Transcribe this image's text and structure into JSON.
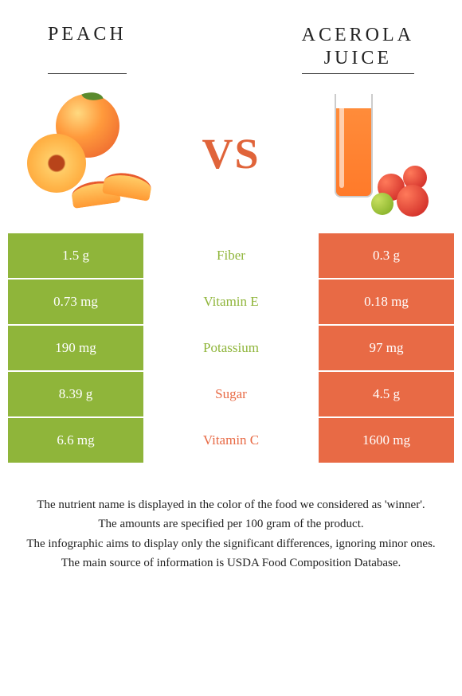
{
  "header": {
    "left_title": "PEACH",
    "right_title_line1": "ACEROLA",
    "right_title_line2": "JUICE"
  },
  "vs_label": "VS",
  "colors": {
    "left_bar": "#8fb53a",
    "right_bar": "#e86a45",
    "left_text": "#8fb53a",
    "right_text": "#e86a45"
  },
  "comparison": {
    "type": "table",
    "rows": [
      {
        "left": "1.5 g",
        "label": "Fiber",
        "right": "0.3 g",
        "winner": "left"
      },
      {
        "left": "0.73 mg",
        "label": "Vitamin E",
        "right": "0.18 mg",
        "winner": "left"
      },
      {
        "left": "190 mg",
        "label": "Potassium",
        "right": "97 mg",
        "winner": "left"
      },
      {
        "left": "8.39 g",
        "label": "Sugar",
        "right": "4.5 g",
        "winner": "right"
      },
      {
        "left": "6.6 mg",
        "label": "Vitamin C",
        "right": "1600 mg",
        "winner": "right"
      }
    ]
  },
  "footer": {
    "line1": "The nutrient name is displayed in the color of the food we considered as 'winner'.",
    "line2": "The amounts are specified per 100 gram of the product.",
    "line3": "The infographic aims to display only the significant differences, ignoring minor ones.",
    "line4": "The main source of information is USDA Food Composition Database."
  }
}
